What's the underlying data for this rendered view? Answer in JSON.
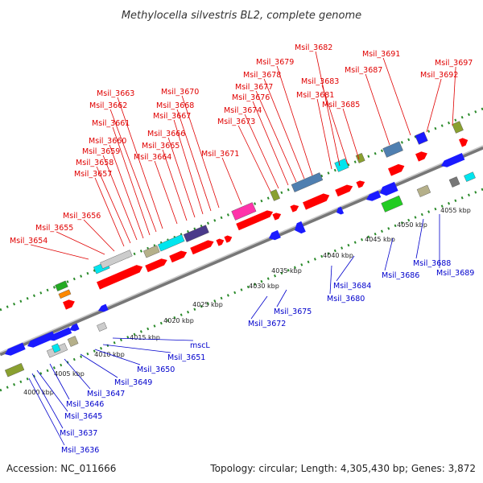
{
  "title": "Methylocella silvestris BL2, complete genome",
  "footer": {
    "accession": "Accession: NC_011666",
    "summary": "Topology: circular; Length: 4,305,430 bp; Genes: 3,872"
  },
  "colors": {
    "forward_label": "#e00000",
    "reverse_label": "#0000cc",
    "forward_gene": "#ff0000",
    "reverse_gene": "#1a1aff",
    "backbone": "#888888",
    "dots": "#2a8a2a"
  },
  "scale_ticks": [
    "4000 kbp",
    "4005 kbp",
    "4010 kbp",
    "4015 kbp",
    "4020 kbp",
    "4025 kbp",
    "4030 kbp",
    "4035 kbp",
    "4040 kbp",
    "4045 kbp",
    "4050 kbp",
    "4055 kbp"
  ],
  "forward_labels": [
    "Msil_3654",
    "Msil_3655",
    "Msil_3656",
    "Msil_3657",
    "Msil_3658",
    "Msil_3659",
    "Msil_3660",
    "Msil_3661",
    "Msil_3662",
    "Msil_3663",
    "Msil_3664",
    "Msil_3665",
    "Msil_3666",
    "Msil_3667",
    "Msil_3668",
    "Msil_3670",
    "Msil_3671",
    "Msil_3673",
    "Msil_3674",
    "Msil_3676",
    "Msil_3677",
    "Msil_3678",
    "Msil_3679",
    "Msil_3681",
    "Msil_3682",
    "Msil_3683",
    "Msil_3685",
    "Msil_3687",
    "Msil_3691",
    "Msil_3692",
    "Msil_3697"
  ],
  "reverse_labels": [
    "Msil_3636",
    "Msil_3637",
    "Msil_3645",
    "Msil_3646",
    "Msil_3647",
    "Msil_3649",
    "Msil_3650",
    "Msil_3651",
    "mscL",
    "Msil_3672",
    "Msil_3675",
    "Msil_3680",
    "Msil_3684",
    "Msil_3686",
    "Msil_3688",
    "Msil_3689"
  ]
}
